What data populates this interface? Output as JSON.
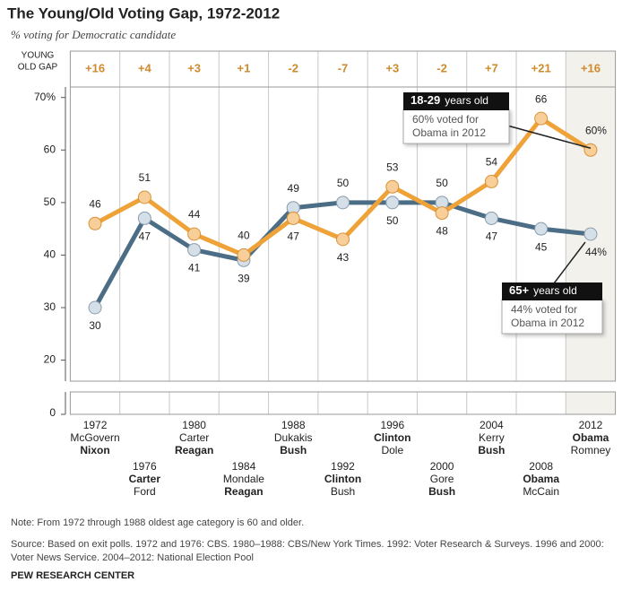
{
  "chart_data": {
    "type": "line",
    "title": "The Young/Old Voting Gap, 1972-2012",
    "subtitle": "% voting for Democratic candidate",
    "gap_header": [
      "YOUNG",
      "OLD GAP"
    ],
    "young_old_gap": [
      "+16",
      "+4",
      "+3",
      "+1",
      "-2",
      "-7",
      "+3",
      "-2",
      "+7",
      "+21",
      "+16"
    ],
    "categories": [
      "1972",
      "1976",
      "1980",
      "1984",
      "1988",
      "1992",
      "1996",
      "2000",
      "2004",
      "2008",
      "2012"
    ],
    "candidates": [
      {
        "dem": "McGovern",
        "rep": "Nixon",
        "winner": "rep"
      },
      {
        "dem": "Carter",
        "rep": "Ford",
        "winner": "dem"
      },
      {
        "dem": "Carter",
        "rep": "Reagan",
        "winner": "rep"
      },
      {
        "dem": "Mondale",
        "rep": "Reagan",
        "winner": "rep"
      },
      {
        "dem": "Dukakis",
        "rep": "Bush",
        "winner": "rep"
      },
      {
        "dem": "Clinton",
        "rep": "Bush",
        "winner": "dem"
      },
      {
        "dem": "Clinton",
        "rep": "Dole",
        "winner": "dem"
      },
      {
        "dem": "Gore",
        "rep": "Bush",
        "winner": "rep"
      },
      {
        "dem": "Kerry",
        "rep": "Bush",
        "winner": "rep"
      },
      {
        "dem": "Obama",
        "rep": "McCain",
        "winner": "dem"
      },
      {
        "dem": "Obama",
        "rep": "Romney",
        "winner": "dem"
      }
    ],
    "series": [
      {
        "name": "18-29",
        "color": "#eea238",
        "marker_fill": "#f8cf98",
        "values": [
          46,
          51,
          44,
          40,
          47,
          43,
          53,
          48,
          54,
          66,
          60
        ],
        "value_labels": [
          "46",
          "51",
          "44",
          "40",
          "47",
          "43",
          "53",
          "48",
          "54",
          "66",
          "60%"
        ],
        "label_side": [
          "above",
          "above",
          "above",
          "above",
          "below",
          "below",
          "above",
          "below",
          "above",
          "above",
          "above"
        ],
        "annotation": {
          "suffix": "years old",
          "text": [
            "60% voted for",
            "Obama in 2012"
          ]
        }
      },
      {
        "name": "65+",
        "color": "#4b6d86",
        "marker_fill": "#d5dfe8",
        "values": [
          30,
          47,
          41,
          39,
          49,
          50,
          50,
          50,
          47,
          45,
          44
        ],
        "value_labels": [
          "30",
          "47",
          "41",
          "39",
          "49",
          "50",
          "50",
          "50",
          "47",
          "45",
          "44%"
        ],
        "label_side": [
          "below",
          "below",
          "below",
          "below",
          "above",
          "above",
          "below",
          "above",
          "below",
          "below",
          "below"
        ],
        "annotation": {
          "suffix": "years old",
          "text": [
            "44% voted for",
            "Obama in 2012"
          ]
        }
      }
    ],
    "ylim": [
      16,
      72
    ],
    "yticks": [
      20,
      30,
      40,
      50,
      60,
      {
        "value": 70,
        "label": "70%"
      }
    ],
    "lower_ylim": [
      0,
      4
    ],
    "lower_yticks": [
      0
    ],
    "shaded_category": 10,
    "note": "Note: From 1972 through 1988 oldest age category is 60 and older.",
    "source": [
      "Source: Based on exit polls. 1972 and 1976: CBS. 1980–1988: CBS/New York Times. 1992: Voter Research & Surveys. 1996 and 2000:",
      "Voter News Service. 2004–2012: National Election Pool"
    ],
    "credit": "PEW RESEARCH CENTER"
  }
}
